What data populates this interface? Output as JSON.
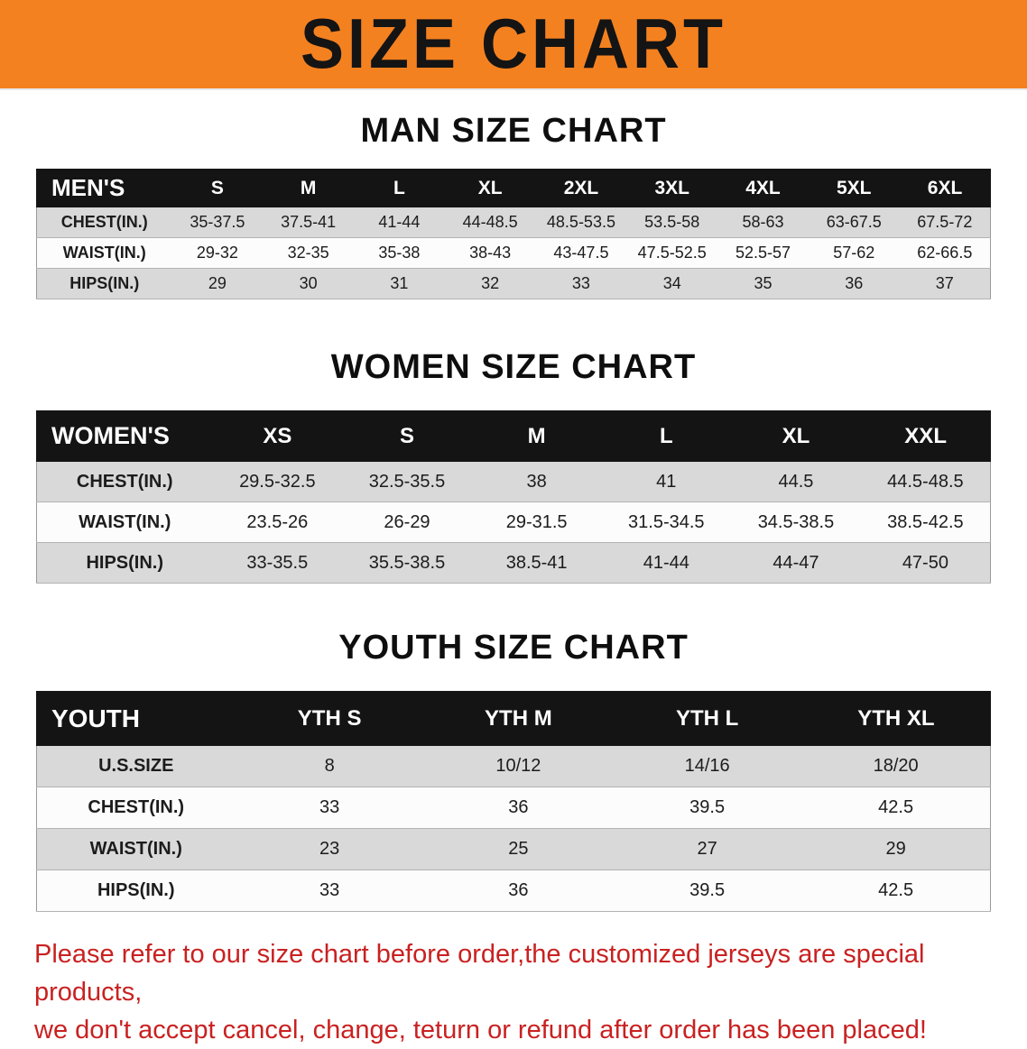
{
  "banner": {
    "title": "SIZE CHART"
  },
  "colors": {
    "banner_bg": "#f48120",
    "table_header_bg": "#141414",
    "row_alt": "#d9d9d9",
    "footer_red": "#c92121"
  },
  "sections": [
    {
      "id": "men",
      "heading": "MAN SIZE CHART",
      "table": {
        "header": [
          "MEN'S",
          "S",
          "M",
          "L",
          "XL",
          "2XL",
          "3XL",
          "4XL",
          "5XL",
          "6XL"
        ],
        "rows": [
          [
            "CHEST(IN.)",
            "35-37.5",
            "37.5-41",
            "41-44",
            "44-48.5",
            "48.5-53.5",
            "53.5-58",
            "58-63",
            "63-67.5",
            "67.5-72"
          ],
          [
            "WAIST(IN.)",
            "29-32",
            "32-35",
            "35-38",
            "38-43",
            "43-47.5",
            "47.5-52.5",
            "52.5-57",
            "57-62",
            "62-66.5"
          ],
          [
            "HIPS(IN.)",
            "29",
            "30",
            "31",
            "32",
            "33",
            "34",
            "35",
            "36",
            "37"
          ]
        ]
      }
    },
    {
      "id": "women",
      "heading": "WOMEN SIZE CHART",
      "table": {
        "header": [
          "WOMEN'S",
          "XS",
          "S",
          "M",
          "L",
          "XL",
          "XXL"
        ],
        "rows": [
          [
            "CHEST(IN.)",
            "29.5-32.5",
            "32.5-35.5",
            "38",
            "41",
            "44.5",
            "44.5-48.5"
          ],
          [
            "WAIST(IN.)",
            "23.5-26",
            "26-29",
            "29-31.5",
            "31.5-34.5",
            "34.5-38.5",
            "38.5-42.5"
          ],
          [
            "HIPS(IN.)",
            "33-35.5",
            "35.5-38.5",
            "38.5-41",
            "41-44",
            "44-47",
            "47-50"
          ]
        ]
      }
    },
    {
      "id": "youth",
      "heading": "YOUTH SIZE CHART",
      "table": {
        "header": [
          "YOUTH",
          "YTH S",
          "YTH M",
          "YTH L",
          "YTH XL"
        ],
        "rows": [
          [
            "U.S.SIZE",
            "8",
            "10/12",
            "14/16",
            "18/20"
          ],
          [
            "CHEST(IN.)",
            "33",
            "36",
            "39.5",
            "42.5"
          ],
          [
            "WAIST(IN.)",
            "23",
            "25",
            "27",
            "29"
          ],
          [
            "HIPS(IN.)",
            "33",
            "36",
            "39.5",
            "42.5"
          ]
        ]
      }
    }
  ],
  "footer": {
    "lines": [
      "Please refer to our size chart before order,the customized jerseys are special products,",
      "we don't accept cancel, change, teturn or refund after order has been placed!"
    ]
  }
}
